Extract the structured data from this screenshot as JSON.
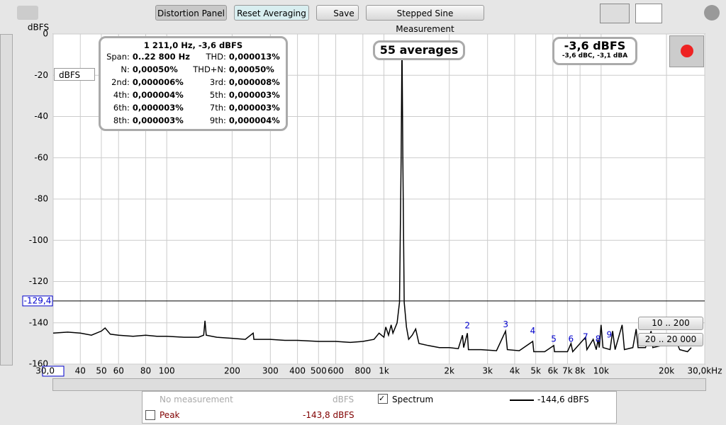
{
  "toolbar": {
    "buttons": [
      "Distortion Panel",
      "Reset Averaging",
      "Save",
      "Stepped Sine Measurement"
    ]
  },
  "unit_select": "dBFS",
  "info_panel": {
    "heading": "1 211,0 Hz, -3,6 dBFS",
    "rows": [
      [
        "Span:",
        "0..22 800 Hz",
        "THD:",
        "0,000013%"
      ],
      [
        "N:",
        "0,00050%",
        "THD+N:",
        "0,00050%"
      ],
      [
        "2nd:",
        "0,000006%",
        "3rd:",
        "0,000008%"
      ],
      [
        "4th:",
        "0,000004%",
        "5th:",
        "0,000003%"
      ],
      [
        "6th:",
        "0,000003%",
        "7th:",
        "0,000003%"
      ],
      [
        "8th:",
        "0,000003%",
        "9th:",
        "0,000004%"
      ]
    ]
  },
  "averages": "55 averages",
  "level": {
    "main": "-3,6 dBFS",
    "sub": "-3,6 dBC, -3,1 dBA"
  },
  "range_buttons": [
    "10 .. 200",
    "20 .. 20 000"
  ],
  "legend": {
    "rows": [
      [
        "No measurement",
        "dBFS",
        "Spectrum",
        "-144,6 dBFS"
      ],
      [
        "Peak",
        "-143,8 dBFS"
      ]
    ]
  },
  "chart_data": {
    "type": "line",
    "y_label": "dBFS",
    "x_scale": "log",
    "grid": true,
    "xlim": [
      30,
      30000
    ],
    "ylim": [
      -160,
      0
    ],
    "xticks": [
      {
        "value": 30,
        "label": "30,0"
      },
      40,
      50,
      60,
      80,
      100,
      200,
      300,
      400,
      500,
      600,
      800,
      {
        "value": 1000,
        "label": "1k"
      },
      {
        "value": 2000,
        "label": "2k"
      },
      {
        "value": 3000,
        "label": "3k"
      },
      {
        "value": 4000,
        "label": "4k"
      },
      {
        "value": 5000,
        "label": "5k"
      },
      {
        "value": 6000,
        "label": "6k"
      },
      {
        "value": 7000,
        "label": "7k"
      },
      {
        "value": 8000,
        "label": "8k"
      },
      {
        "value": 10000,
        "label": "10k"
      },
      {
        "value": 20000,
        "label": "20k"
      },
      {
        "value": 30000,
        "label": "30,0kHz"
      }
    ],
    "yticks": [
      0,
      -20,
      -40,
      -60,
      -80,
      -100,
      -120,
      -140,
      -160
    ],
    "cursor": {
      "value": -129.4,
      "label": "-129,4"
    },
    "x": [
      30,
      35,
      40,
      45,
      50,
      52,
      55,
      60,
      70,
      80,
      90,
      100,
      120,
      140,
      148,
      150,
      152,
      170,
      200,
      230,
      250,
      252,
      300,
      350,
      400,
      500,
      600,
      700,
      800,
      900,
      950,
      1000,
      1020,
      1050,
      1080,
      1100,
      1150,
      1180,
      1200,
      1211,
      1222,
      1240,
      1270,
      1300,
      1350,
      1400,
      1450,
      1600,
      1800,
      2000,
      2200,
      2300,
      2330,
      2422,
      2450,
      2800,
      3300,
      3633,
      3700,
      4200,
      4844,
      4900,
      5500,
      6055,
      6100,
      7000,
      7266,
      7400,
      8477,
      8600,
      9200,
      9500,
      9688,
      9800,
      10000,
      10200,
      11000,
      11300,
      11600,
      12500,
      12800,
      14000,
      14500,
      14800,
      16000,
      17000,
      17300,
      19000,
      21000,
      22000,
      23000,
      25000,
      26000
    ],
    "series": [
      {
        "name": "Spectrum",
        "color": "#000000",
        "values": [
          -145,
          -144.5,
          -145,
          -146,
          -144,
          -142.5,
          -145.5,
          -146,
          -146.5,
          -146,
          -146.5,
          -146.5,
          -147,
          -147,
          -146,
          -139,
          -146,
          -147,
          -147.5,
          -148,
          -145,
          -148,
          -148,
          -148.5,
          -148.5,
          -149,
          -149,
          -149.5,
          -149,
          -148,
          -145,
          -147,
          -142,
          -146,
          -141,
          -145,
          -140,
          -130,
          -60,
          -3.6,
          -60,
          -130,
          -142,
          -148,
          -146,
          -143,
          -150,
          -151,
          -152,
          -152,
          -152.5,
          -146,
          -152,
          -145,
          -153,
          -153,
          -153.5,
          -144,
          -153,
          -153.5,
          -149,
          -154,
          -154,
          -151,
          -154,
          -154,
          -150,
          -154,
          -147,
          -153,
          -148,
          -153,
          -148,
          -152,
          -141,
          -152,
          -153,
          -144,
          -153,
          -141,
          -153,
          -152,
          -143,
          -152,
          -152,
          -144,
          -152,
          -151,
          -150,
          -148,
          -153,
          -154,
          -152
        ]
      }
    ],
    "annotations": [
      {
        "text": "2",
        "x": 2422,
        "y": -141.5
      },
      {
        "text": "3",
        "x": 3633,
        "y": -141
      },
      {
        "text": "4",
        "x": 4844,
        "y": -144
      },
      {
        "text": "5",
        "x": 6055,
        "y": -148
      },
      {
        "text": "6",
        "x": 7266,
        "y": -148
      },
      {
        "text": "7",
        "x": 8477,
        "y": -147
      },
      {
        "text": "8",
        "x": 9688,
        "y": -148
      },
      {
        "text": "9",
        "x": 10899,
        "y": -146
      }
    ]
  }
}
